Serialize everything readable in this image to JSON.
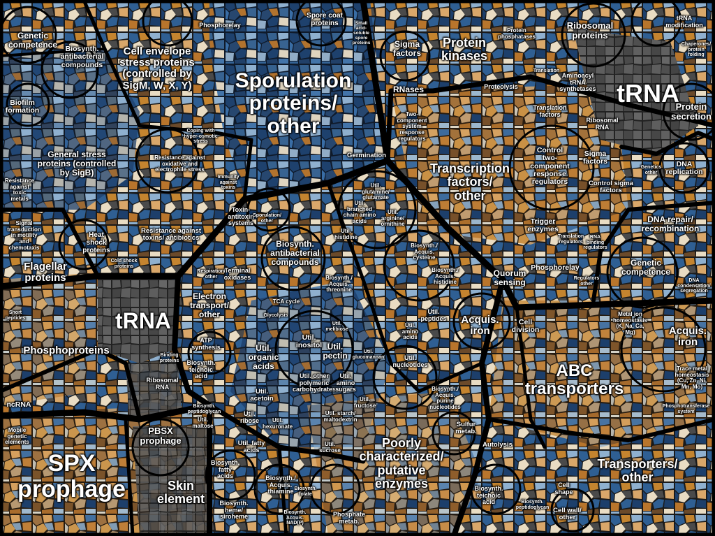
{
  "labels": {
    "sporulation": "Sporulation\nproteins/\nother",
    "trna_right": "tRNA",
    "trna_left": "tRNA",
    "spx": "SPX\nprophage",
    "abc": "ABC\ntransporters",
    "transcription": "Transcription\nfactors/\nother",
    "poorly": "Poorly\ncharacterized/\nputative\nenzymes",
    "transporters_other": "Transporters/\nother",
    "protein_kinases": "Protein\nkinases",
    "skin": "Skin\nelement",
    "general_stress": "General stress\nproteins (controlled\nby SigB)",
    "cell_envelope": "Cell envelope\nstress proteins\n(controlled by\nSigM, W, X, Y)",
    "phosphoproteins": "Phosphoproteins",
    "flagellar": "Flagellar\nproteins",
    "ribosomal": "Ribosomal\nproteins",
    "protein_secretion": "Protein\nsecretion",
    "acquis_iron_right": "Acquis.\niron",
    "acquis_iron_mid": "Acquis.\niron",
    "pbsx": "PBSX\nprophage",
    "dna_repair": "DNA repair/\nrecombination",
    "genetic_competence_r": "Genetic\ncompetence",
    "genetic_competence_l": "Genetic\ncompetence",
    "biofilm": "Biofilm\nformation",
    "sigma_factors_top": "Sigma\nfactors",
    "rnases": "RNases",
    "quorum": "Quorum\nsensing",
    "electron": "Electron\ntransport/\nother",
    "util_organic": "Util.\norganic\nacids",
    "util_pectin": "Util.\npectin",
    "util_inositol": "Util.\ninositol",
    "biosynth_antibac_top": "Biosynth.\nantibacterial\ncompounds",
    "biosynth_antibac_mid": "Biosynth.\nantibacterial\ncompounds",
    "control_two": "Control\ntwo-\ncomponent\nresponse\nregulators",
    "sigma_factors_mid": "Sigma\nfactors",
    "control_sigma": "Control sigma\nfactors",
    "trigger": "Trigger\nenzymes",
    "phosphorelay_mid": "Phosphorelay",
    "phosphorelay_top": "Phosphorelay",
    "dna_replication": "DNA\nreplication",
    "trna_mod": "tRNA\nmodification",
    "aminoacyl": "Aminoacyl\ntRNA\nsynthetases",
    "translation_factors": "Translation\nfactors",
    "ribosomal_rna_r": "Ribosomal\nRNA",
    "ribosomal_rna_l": "Ribosomal\nRNA",
    "proteolysis": "Proteolysis",
    "protein_phosphatases": "Protein\nphosphatases",
    "two_component": "Two-\ncomponent\nsystem\nresponse\nregulators",
    "germination": "Germination",
    "spore_coat": "Spore coat\nproteins",
    "heat_shock": "Heat\nshock\nproteins",
    "resistance_toxins": "Resistance against\ntoxins/ antibiotics",
    "toxin_antitoxin": "Toxin-\nantitoxin\nsystems",
    "resistance_oxidative": "Resistance against\noxidative and\nelectrophile stress",
    "resistance_toxic_metals": "Resistance\nagainst\ntoxic\nmetals",
    "signal_transduction": "Signal\ntransduction\nin motility\nand\nchemotaxis",
    "biosynth_antibac_left": "Biosynth.\nantibacterial\ncompounds",
    "ncrna": "ncRNA",
    "mobile": "Mobile\ngenetic\nelements",
    "cell_division": "Cell\ndivision",
    "metal_ion": "Metal ion\nhomeostasis\n(K, Na, Ca,\nMg)",
    "trace_metal": "Trace metal\nhomeostasis\n(Cu, Zn, Ni,\nMn, Mo)",
    "phosphotransferase": "Phosphotransferase\nsystem",
    "autolysis": "Autolysis",
    "biosynth_teichoic_r": "Biosynth.\nteichoic\nacid",
    "biosynth_teichoic_l": "Biosynth.\nteichoic\nacid",
    "biosynth_peptidoglycan": "Biosynth.\npeptidoglycan",
    "cell_wall_other": "Cell wall/\nother",
    "cell_shape": "Cell\nshape",
    "sulfur": "Sulfur\nmetab.",
    "phosphate": "Phosphate\nmetab.",
    "biosynth_heme": "Biosynth.\nheme/\nsiroheme",
    "biosynth_thiamine": "Biosynth./\nAcquis.\nthiamine",
    "biosynth_fatty": "Biosynth.\nfatty\nacids",
    "util_fatty": "Util. fatty\nacids",
    "util_acetoin": "Util.\nacetoin",
    "util_ribose": "Util.\nribose",
    "util_other_poly": "Util. other\npolymeric\ncarbohydrates",
    "util_amino_sugars": "Util.\namino\nsugars",
    "util_nucleotides": "Util.\nnucleotides",
    "util_peptides": "Util.\npeptides",
    "util_amino_acids": "Util.\namino\nacids",
    "biosynth_purine": "Biosynth./\nAcquis.\npurine\nnucleotides",
    "util_fructose": "Util.\nfructose",
    "util_sucrose": "Util.\nsucrose",
    "util_starch": "Util. starch/\nmaltodextrin",
    "util_maltose": "Util.\nmaltose",
    "util_hexuronate": "Util.\nhexuronate",
    "util_histidine": "Util.\nhistidine",
    "util_arginine": "Util.\narginine/\nornithine",
    "util_branched": "Util.\nbranched\nchain amino\nacids",
    "util_glutamine": "Util.\nglutamine/\nglutamate",
    "biosynth_cysteine": "Biosynth./\nAcquis.\ncysteine",
    "biosynth_threonine": "Biosynth./\nAcquis.\nthreonine",
    "biosynth_histidine": "Biosynth./\nAcquis.\nhistidine",
    "tca": "TCA cycle",
    "terminal_oxidases": "Terminal\noxidases",
    "atp": "ATP\nsynthesis",
    "biosynth_peptidoglycan_l": "Biosynth.\npeptidoglycan",
    "short_peptides": "Short\npeptides",
    "binding_proteins": "Binding\nproteins",
    "coping_hyper": "Coping with\nhyper-osmotic\nstress",
    "immunity": "Immunity\nagainst\ntoxins",
    "sporulation_other": "Sporulation/\nother",
    "biosynth_antibac_tl": "Biosynth.\nantibacterial\ncompounds",
    "cold_shock": "Cold shock\nproteins",
    "respiration": "Respiration/\nother",
    "rna_binding": "RNA\nbinding\nregulators",
    "translation_reg": "Translation\nregulators",
    "regulators_other": "Regulators\nother",
    "genetics_other": "Genetics\nother",
    "dna_condensation": "DNA\ncondensation/\nsegregation",
    "biosynth_nadp": "Biosynth.\nAcquis.\nNAD(P)",
    "biosynth_folate": "Biosynth.\nfolate",
    "glycolysis": "Glycolysis",
    "small_acid": "Small\nacid-\nsoluble\nspore\nproteins",
    "chaperones": "Chaperones/\nprotein\nfolding",
    "translation": "Translation",
    "glucosamine": "Util.\nglucomannan",
    "util_other": "Util.\nmelibiose"
  },
  "colors": {
    "blue_dark": "#1d3f6b",
    "blue_mid": "#2f5f93",
    "blue_light": "#8fb0cf",
    "orange": "#b8752c",
    "orange_light": "#d9a76a",
    "cream": "#e9dcc3",
    "grey": "#5a5a5a",
    "grey_dark": "#3a3a3a",
    "border": "#000000"
  }
}
